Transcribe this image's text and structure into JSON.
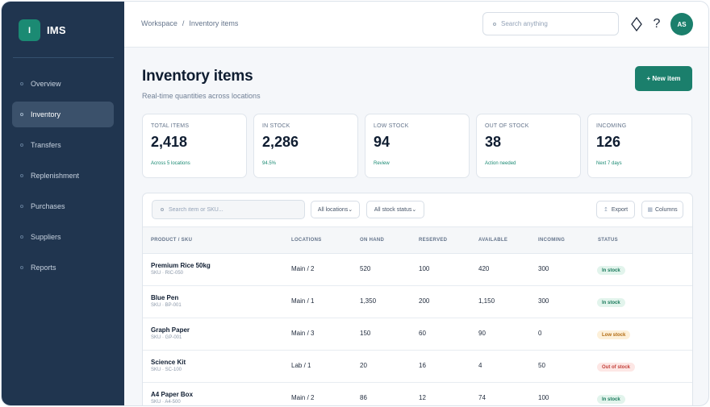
{
  "brand": {
    "mark": "I",
    "name": "IMS"
  },
  "sidebar": {
    "items": [
      {
        "label": "Overview",
        "active": false
      },
      {
        "label": "Inventory",
        "active": true
      },
      {
        "label": "Transfers",
        "active": false
      },
      {
        "label": "Replenishment",
        "active": false
      },
      {
        "label": "Purchases",
        "active": false
      },
      {
        "label": "Suppliers",
        "active": false
      },
      {
        "label": "Reports",
        "active": false
      }
    ]
  },
  "header": {
    "breadcrumb": [
      "Workspace",
      "/",
      "Inventory items"
    ],
    "search_placeholder": "Search anything",
    "icons": [
      "diamond-icon",
      "help-icon"
    ],
    "avatar": "AS"
  },
  "page": {
    "title": "Inventory items",
    "subtitle": "Real-time quantities across locations",
    "new_button": "+ New item"
  },
  "stats": [
    {
      "label": "TOTAL ITEMS",
      "value": "2,418",
      "note": "Across 5 locations"
    },
    {
      "label": "IN STOCK",
      "value": "2,286",
      "note": "94.5%"
    },
    {
      "label": "LOW STOCK",
      "value": "94",
      "note": "Review"
    },
    {
      "label": "OUT OF STOCK",
      "value": "38",
      "note": "Action needed"
    },
    {
      "label": "INCOMING",
      "value": "126",
      "note": "Next 7 days"
    }
  ],
  "toolbar": {
    "search_placeholder": "Search item or SKU...",
    "location_filter": "All locations",
    "status_filter": "All stock status",
    "export": "Export",
    "columns": "Columns"
  },
  "table": {
    "columns": [
      "PRODUCT / SKU",
      "LOCATIONS",
      "ON HAND",
      "RESERVED",
      "AVAILABLE",
      "INCOMING",
      "STATUS"
    ],
    "rows": [
      {
        "name": "Premium Rice 50kg",
        "sku": "SKU · RIC-050",
        "locations": "Main / 2",
        "on_hand": "520",
        "reserved": "100",
        "available": "420",
        "incoming": "300",
        "status": "In stock",
        "status_type": "in"
      },
      {
        "name": "Blue Pen",
        "sku": "SKU · BP-001",
        "locations": "Main / 1",
        "on_hand": "1,350",
        "reserved": "200",
        "available": "1,150",
        "incoming": "300",
        "status": "In stock",
        "status_type": "in"
      },
      {
        "name": "Graph Paper",
        "sku": "SKU · GP-001",
        "locations": "Main / 3",
        "on_hand": "150",
        "reserved": "60",
        "available": "90",
        "incoming": "0",
        "status": "Low stock",
        "status_type": "low"
      },
      {
        "name": "Science Kit",
        "sku": "SKU · SC-100",
        "locations": "Lab / 1",
        "on_hand": "20",
        "reserved": "16",
        "available": "4",
        "incoming": "50",
        "status": "Out of stock",
        "status_type": "out"
      },
      {
        "name": "A4 Paper Box",
        "sku": "SKU · A4-500",
        "locations": "Main / 2",
        "on_hand": "86",
        "reserved": "12",
        "available": "74",
        "incoming": "100",
        "status": "In stock",
        "status_type": "in"
      }
    ]
  },
  "colors": {
    "sidebar": "#20354f",
    "accent": "#1b7f6c"
  }
}
